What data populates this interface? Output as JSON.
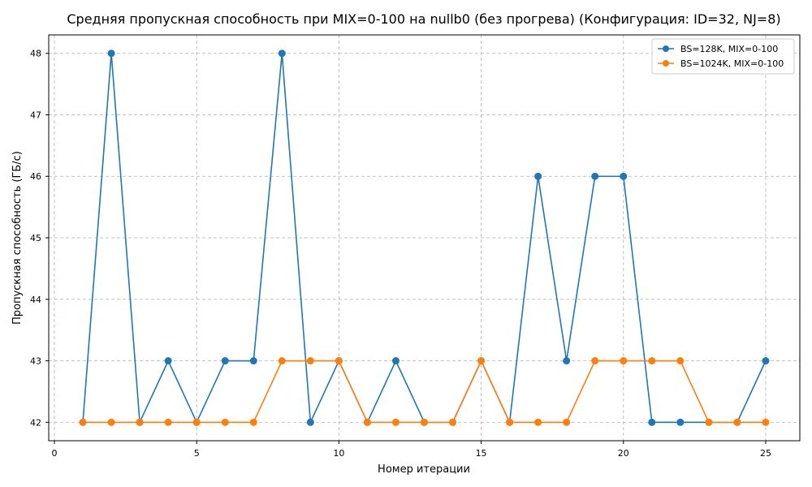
{
  "chart_data": {
    "type": "line",
    "title": "Средняя пропускная способность при MIX=0-100 на nullb0 (без прогрева) (Конфигурация: ID=32, NJ=8)",
    "xlabel": "Номер итерации",
    "ylabel": "Пропускная способность (ГБ/с)",
    "xlim": [
      -0.2,
      26.2
    ],
    "ylim": [
      41.7,
      48.3
    ],
    "xticks": [
      0,
      5,
      10,
      15,
      20,
      25
    ],
    "yticks": [
      42,
      43,
      44,
      45,
      46,
      47,
      48
    ],
    "grid": true,
    "legend_position": "top-right",
    "x": [
      1,
      2,
      3,
      4,
      5,
      6,
      7,
      8,
      9,
      10,
      11,
      12,
      13,
      14,
      15,
      16,
      17,
      18,
      19,
      20,
      21,
      22,
      23,
      24,
      25
    ],
    "series": [
      {
        "name": "BS=128K, MIX=0-100",
        "color": "#1f77b4",
        "values": [
          42,
          48,
          42,
          43,
          42,
          43,
          43,
          48,
          42,
          43,
          42,
          43,
          42,
          42,
          43,
          42,
          46,
          43,
          46,
          46,
          42,
          42,
          42,
          42,
          43
        ]
      },
      {
        "name": "BS=1024K, MIX=0-100",
        "color": "#ff7f0e",
        "values": [
          42,
          42,
          42,
          42,
          42,
          42,
          42,
          43,
          43,
          43,
          42,
          42,
          42,
          42,
          43,
          42,
          42,
          42,
          43,
          43,
          43,
          43,
          42,
          42,
          42
        ]
      }
    ]
  }
}
